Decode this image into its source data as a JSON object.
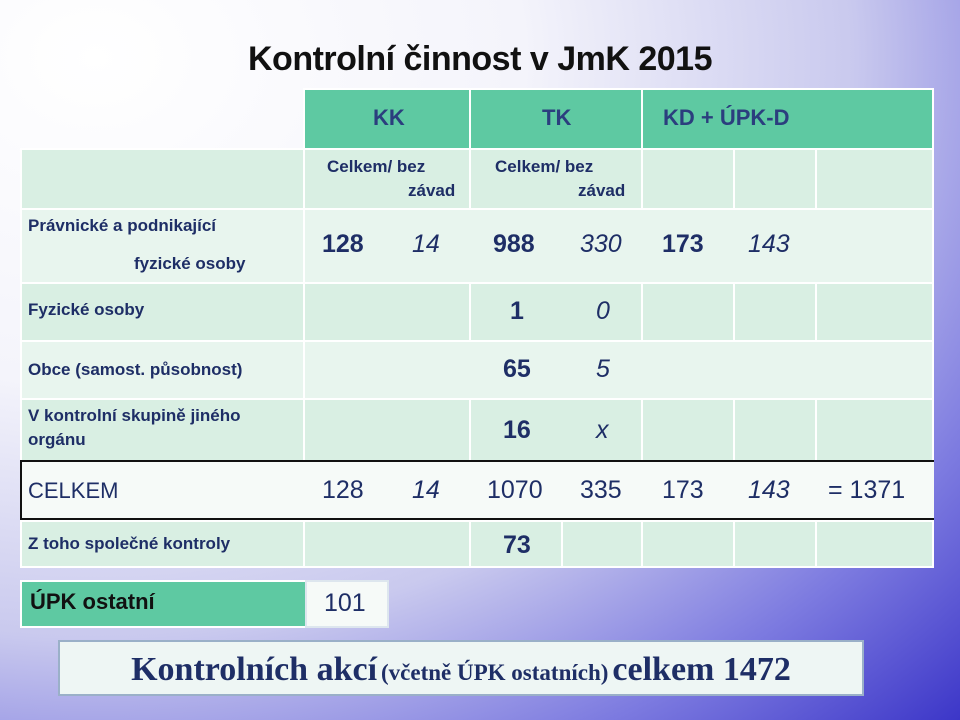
{
  "title": "Kontrolní činnost v JmK 2015",
  "columns": {
    "kk": "KK",
    "tk": "TK",
    "kd": "KD + ÚPK-D",
    "sub_line1": "Celkem/ bez",
    "sub_line2": "závad"
  },
  "rows": {
    "pravnicke_line1": "Právnické a podnikající",
    "pravnicke_line2": "fyzické osoby",
    "pravnicke_values": [
      "128",
      "14",
      "988",
      "330",
      "173",
      "143"
    ],
    "fyzicke": "Fyzické osoby",
    "fyzicke_values": [
      "1",
      "0"
    ],
    "obce": "Obce (samost. působnost)",
    "obce_values": [
      "65",
      "5"
    ],
    "skupina_line1": "V kontrolní skupině jiného",
    "skupina_line2": "orgánu",
    "skupina_values": [
      "16",
      "x"
    ],
    "celkem": "CELKEM",
    "celkem_values": [
      "128",
      "14",
      "1070",
      "335",
      "173",
      "143"
    ],
    "celkem_total": "= 1371",
    "spolecne": "Z toho společné kontroly",
    "spolecne_value": "73",
    "upk": "ÚPK ostatní",
    "upk_value": "101"
  },
  "footer": {
    "part1": "Kontrolních akcí",
    "part2": "(včetně ÚPK ostatních)",
    "part3": "celkem 1472"
  }
}
